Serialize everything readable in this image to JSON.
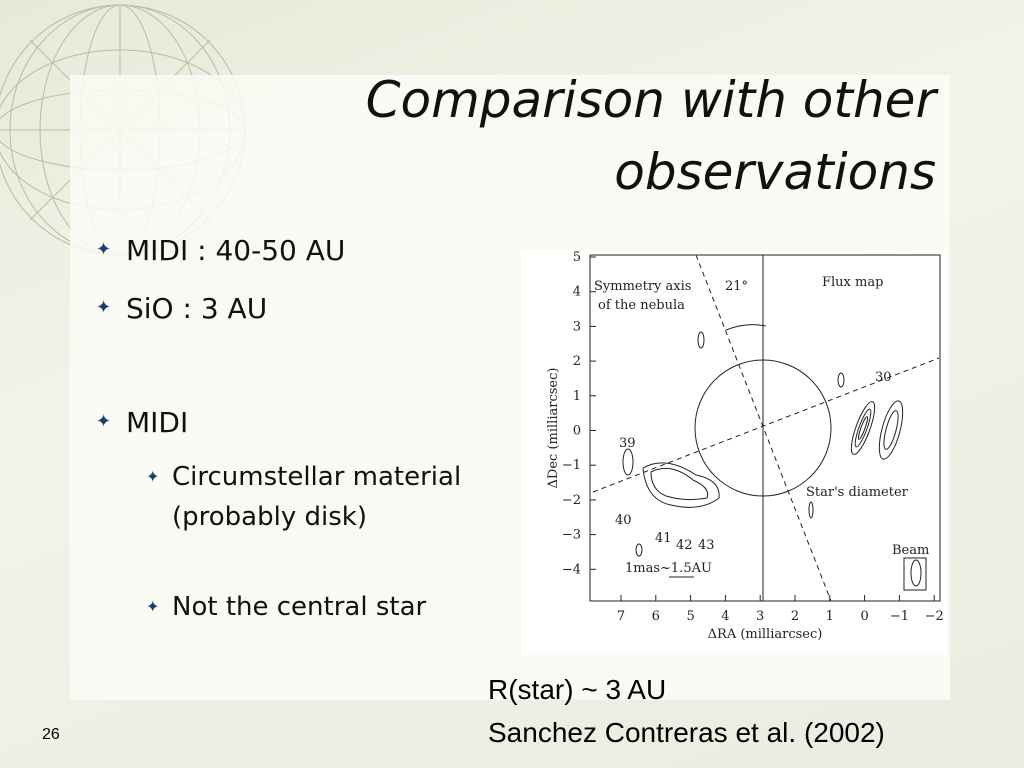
{
  "slide": {
    "title": [
      "Comparison with other",
      "observations"
    ],
    "bullets": [
      {
        "text": "MIDI : 40-50 AU"
      },
      {
        "text": "SiO : 3 AU"
      },
      {
        "text": "MIDI",
        "sub": [
          "Circumstellar material (probably disk)",
          "Not the central star"
        ]
      }
    ],
    "figure": {
      "yticks": [
        "5",
        "4",
        "3",
        "2",
        "1",
        "0",
        "−1",
        "−2",
        "−3",
        "−4"
      ],
      "xticks": [
        "7",
        "6",
        "5",
        "4",
        "3",
        "2",
        "1",
        "0",
        "−1",
        "−2"
      ],
      "xlabel": "ΔRA (milliarcsec)",
      "ylabel": "ΔDec (milliarcsec)",
      "annotations": {
        "symmetry": [
          "Symmetry axis",
          "of the nebula"
        ],
        "angle": "21°",
        "flux_map": "Flux map",
        "star_diameter": "Star's diameter",
        "beam": "Beam",
        "scale": "1mas~1.5AU",
        "contours": [
          "30",
          "39",
          "40",
          "41",
          "42",
          "43"
        ]
      }
    },
    "caption": [
      "R(star) ~ 3 AU",
      "Sanchez Contreras et al. (2002)"
    ],
    "page_number": "26"
  }
}
